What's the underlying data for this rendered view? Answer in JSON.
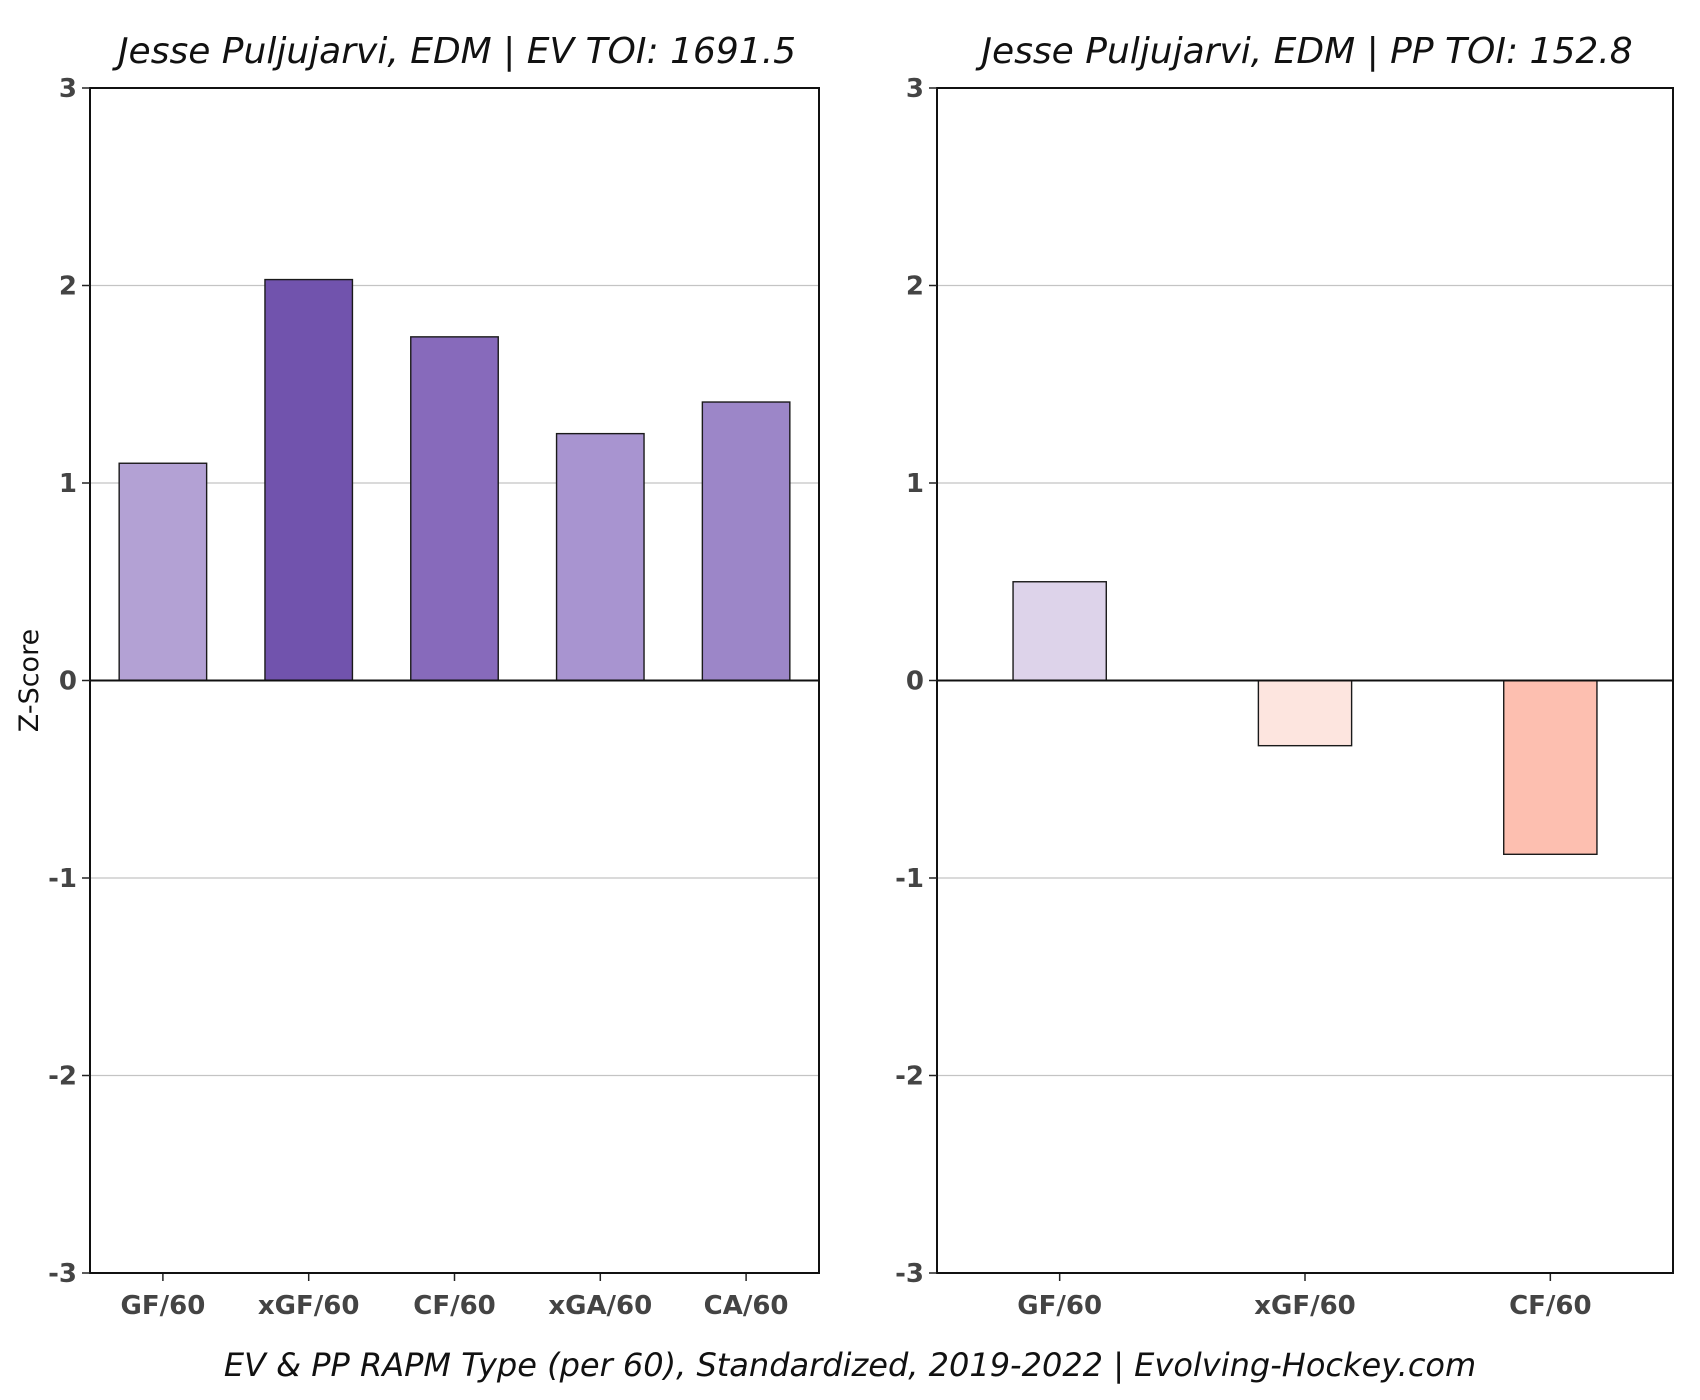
{
  "footer": "EV & PP RAPM Type (per 60), Standardized, 2019-2022    |    Evolving-Hockey.com",
  "chart_data": [
    {
      "type": "bar",
      "title": "Jesse Puljujarvi, EDM  |  EV TOI: 1691.5",
      "ylabel": "Z-Score",
      "ylim": [
        -3,
        3
      ],
      "yticks": [
        3,
        2,
        1,
        0,
        -1,
        -2,
        -3
      ],
      "categories": [
        "GF/60",
        "xGF/60",
        "CF/60",
        "xGA/60",
        "CA/60"
      ],
      "values": [
        1.1,
        2.03,
        1.74,
        1.25,
        1.41
      ],
      "colors": [
        "#b3a1d4",
        "#7153ad",
        "#876abb",
        "#a894d0",
        "#9c86c8"
      ],
      "grid": true
    },
    {
      "type": "bar",
      "title": "Jesse Puljujarvi, EDM  |  PP TOI: 152.8",
      "ylabel": "",
      "ylim": [
        -3,
        3
      ],
      "yticks": [
        3,
        2,
        1,
        0,
        -1,
        -2,
        -3
      ],
      "categories": [
        "GF/60",
        "xGF/60",
        "CF/60"
      ],
      "values": [
        0.5,
        -0.33,
        -0.88
      ],
      "colors": [
        "#ddd3ea",
        "#fde5df",
        "#fdbfb0"
      ],
      "grid": true
    }
  ]
}
